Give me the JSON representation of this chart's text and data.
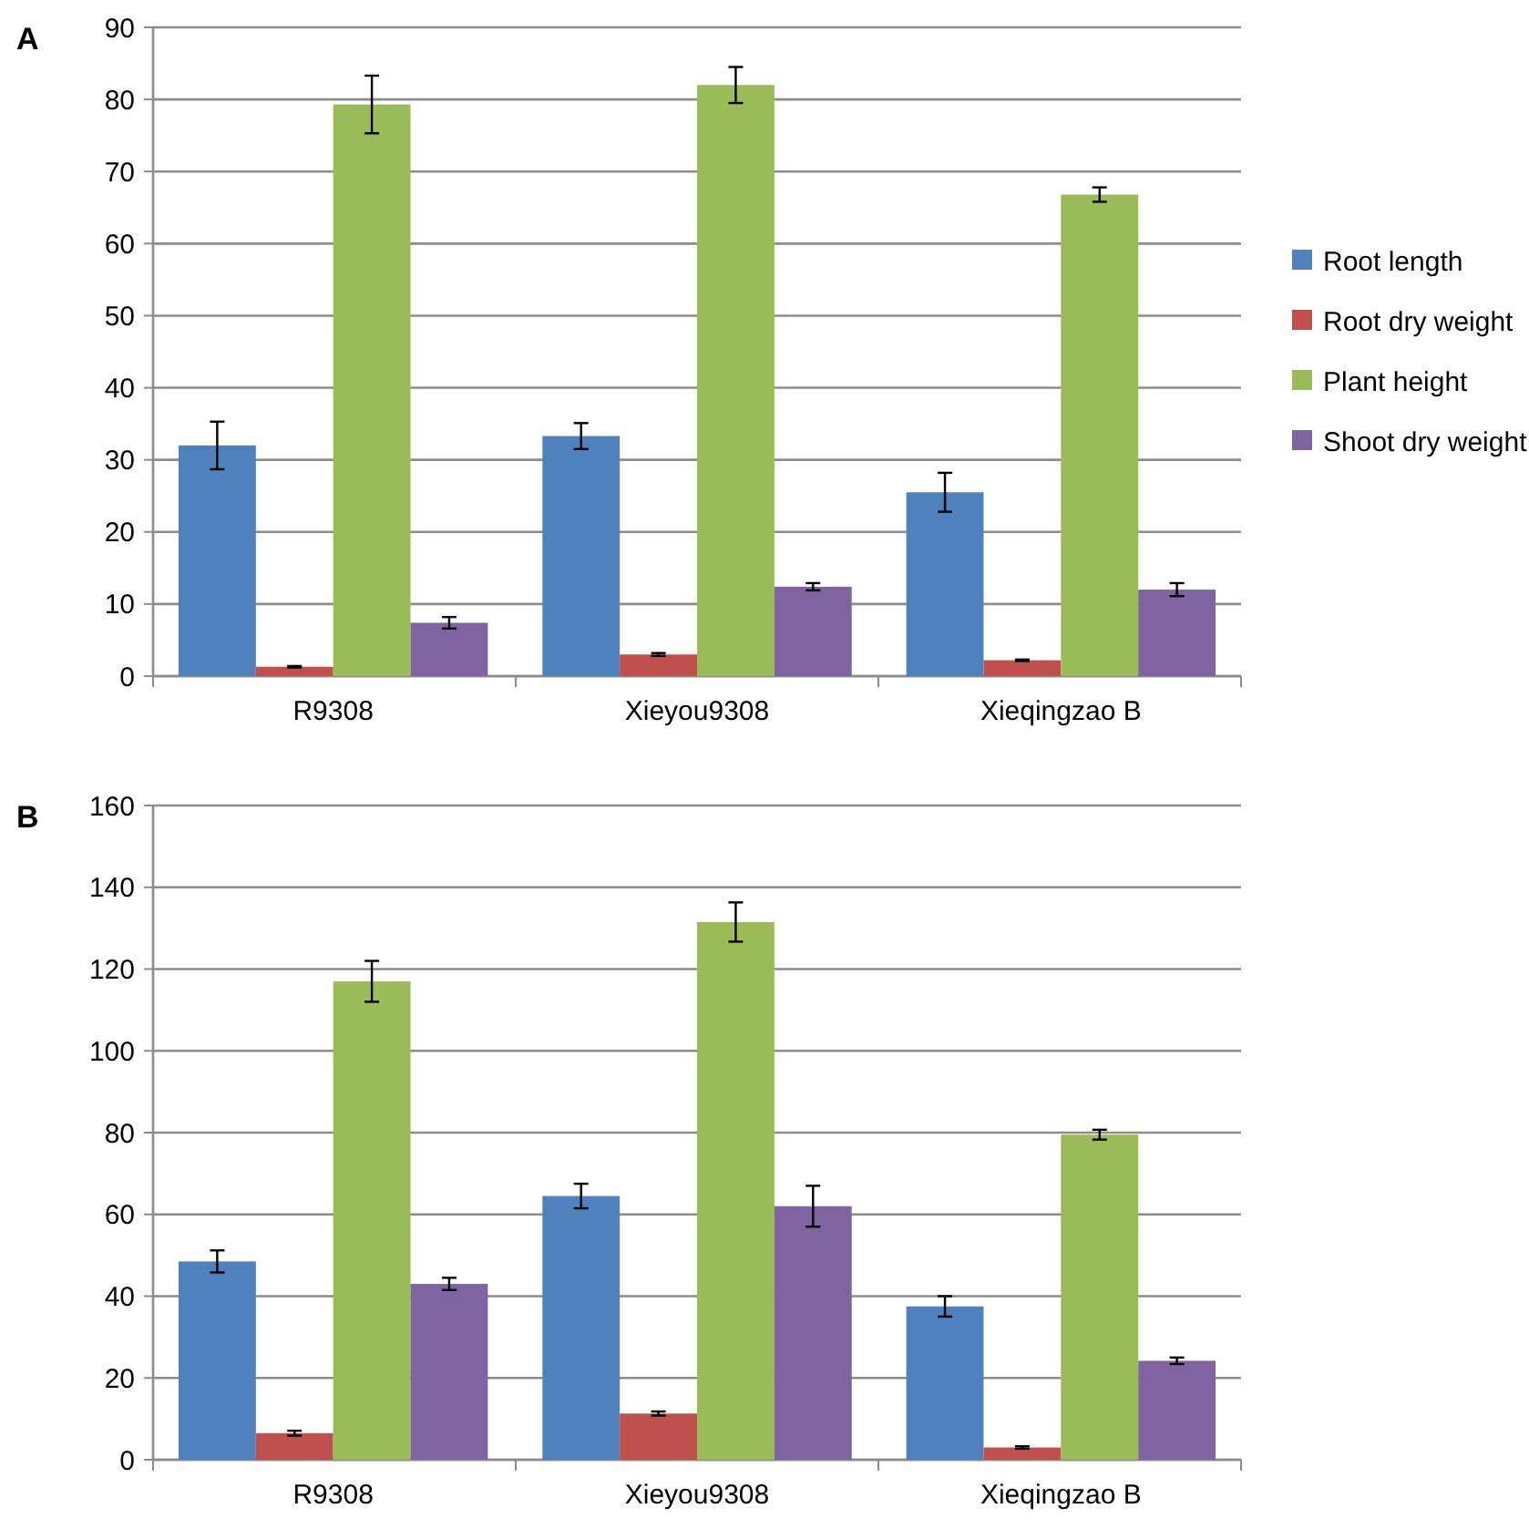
{
  "chart_data": [
    {
      "type": "bar",
      "annotations": [
        "A"
      ],
      "categories": [
        "R9308",
        "Xieyou9308",
        "Xieqingzao B"
      ],
      "ylim": [
        0,
        90
      ],
      "yticks": [
        0,
        10,
        20,
        30,
        40,
        50,
        60,
        70,
        80,
        90
      ],
      "grid": "y",
      "legend": "right",
      "series": [
        {
          "name": "Root length",
          "color": "#4f81bd",
          "values": [
            32,
            33.3,
            25.5
          ],
          "errors": [
            3.3,
            1.8,
            2.7
          ]
        },
        {
          "name": "Root dry weight",
          "color": "#c0504d",
          "values": [
            1.3,
            3.0,
            2.2
          ],
          "errors": [
            0.1,
            0.2,
            0.1
          ]
        },
        {
          "name": "Plant height",
          "color": "#9bbb59",
          "values": [
            79.3,
            82,
            66.8
          ],
          "errors": [
            4,
            2.5,
            1
          ]
        },
        {
          "name": "Shoot dry weight",
          "color": "#8064a2",
          "values": [
            7.4,
            12.4,
            12
          ],
          "errors": [
            0.8,
            0.5,
            0.9
          ]
        }
      ]
    },
    {
      "type": "bar",
      "annotations": [
        "B"
      ],
      "categories": [
        "R9308",
        "Xieyou9308",
        "Xieqingzao B"
      ],
      "ylim": [
        0,
        160
      ],
      "yticks": [
        0,
        20,
        40,
        60,
        80,
        100,
        120,
        140,
        160
      ],
      "grid": "y",
      "legend": false,
      "series": [
        {
          "color": "#4f81bd",
          "values": [
            48.5,
            64.5,
            37.5
          ],
          "errors": [
            2.7,
            3,
            2.5
          ]
        },
        {
          "color": "#c0504d",
          "values": [
            6.5,
            11.3,
            3.0
          ],
          "errors": [
            0.6,
            0.5,
            0.3
          ]
        },
        {
          "color": "#9bbb59",
          "values": [
            117,
            131.5,
            79.5
          ],
          "errors": [
            5,
            4.8,
            1.2
          ]
        },
        {
          "color": "#8064a2",
          "values": [
            43,
            62,
            24.2
          ],
          "errors": [
            1.5,
            5,
            0.8
          ]
        }
      ]
    }
  ]
}
